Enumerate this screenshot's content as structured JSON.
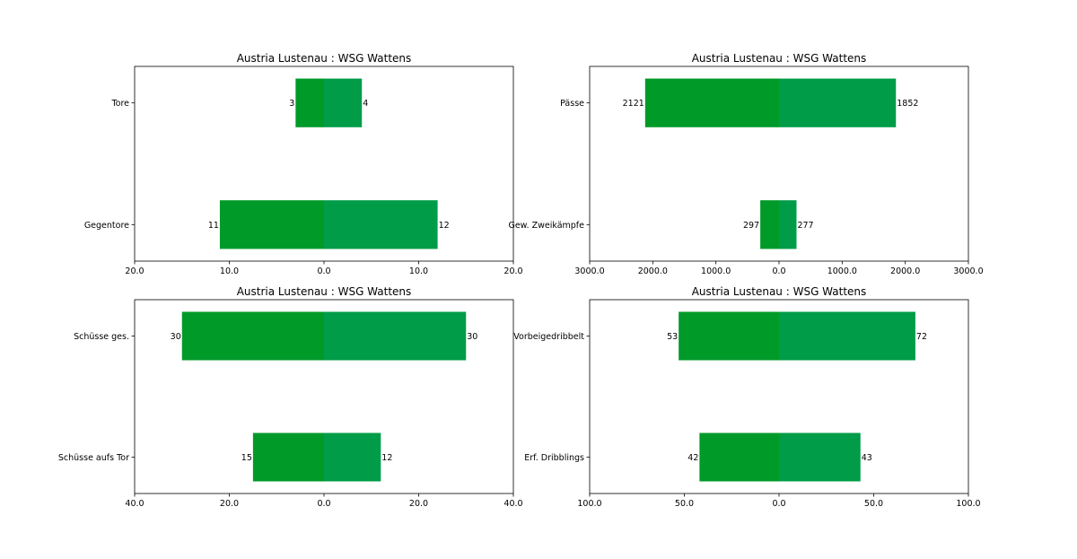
{
  "chart_data": [
    {
      "type": "bar",
      "orientation": "horizontal-diverging",
      "title": "Austria Lustenau : WSG Wattens",
      "categories": [
        "Tore",
        "Gegentore"
      ],
      "series": [
        {
          "name": "Austria Lustenau",
          "side": "left",
          "color": "#009a29",
          "values": [
            3,
            11
          ]
        },
        {
          "name": "WSG Wattens",
          "side": "right",
          "color": "#009c48",
          "values": [
            4,
            12
          ]
        }
      ],
      "xlim": [
        -20,
        20
      ],
      "xticks": [
        -20,
        -10,
        0,
        10,
        20
      ],
      "xtick_labels": [
        "20.0",
        "10.0",
        "0.0",
        "10.0",
        "20.0"
      ]
    },
    {
      "type": "bar",
      "orientation": "horizontal-diverging",
      "title": "Austria Lustenau : WSG Wattens",
      "categories": [
        "Pässe",
        "Gew. Zweikämpfe"
      ],
      "series": [
        {
          "name": "Austria Lustenau",
          "side": "left",
          "color": "#009a29",
          "values": [
            2121,
            297
          ]
        },
        {
          "name": "WSG Wattens",
          "side": "right",
          "color": "#009c48",
          "values": [
            1852,
            277
          ]
        }
      ],
      "xlim": [
        -3000,
        3000
      ],
      "xticks": [
        -3000,
        -2000,
        -1000,
        0,
        1000,
        2000,
        3000
      ],
      "xtick_labels": [
        "3000.0",
        "2000.0",
        "1000.0",
        "0.0",
        "1000.0",
        "2000.0",
        "3000.0"
      ]
    },
    {
      "type": "bar",
      "orientation": "horizontal-diverging",
      "title": "Austria Lustenau : WSG Wattens",
      "categories": [
        "Schüsse ges.",
        "Schüsse aufs Tor"
      ],
      "series": [
        {
          "name": "Austria Lustenau",
          "side": "left",
          "color": "#009a29",
          "values": [
            30,
            15
          ]
        },
        {
          "name": "WSG Wattens",
          "side": "right",
          "color": "#009c48",
          "values": [
            30,
            12
          ]
        }
      ],
      "xlim": [
        -40,
        40
      ],
      "xticks": [
        -40,
        -20,
        0,
        20,
        40
      ],
      "xtick_labels": [
        "40.0",
        "20.0",
        "0.0",
        "20.0",
        "40.0"
      ]
    },
    {
      "type": "bar",
      "orientation": "horizontal-diverging",
      "title": "Austria Lustenau : WSG Wattens",
      "categories": [
        "Vorbeigedribbelt",
        "Erf. Dribblings"
      ],
      "series": [
        {
          "name": "Austria Lustenau",
          "side": "left",
          "color": "#009a29",
          "values": [
            53,
            42
          ]
        },
        {
          "name": "WSG Wattens",
          "side": "right",
          "color": "#009c48",
          "values": [
            72,
            43
          ]
        }
      ],
      "xlim": [
        -100,
        100
      ],
      "xticks": [
        -100,
        -50,
        0,
        50,
        100
      ],
      "xtick_labels": [
        "100.0",
        "50.0",
        "0.0",
        "50.0",
        "100.0"
      ]
    }
  ]
}
